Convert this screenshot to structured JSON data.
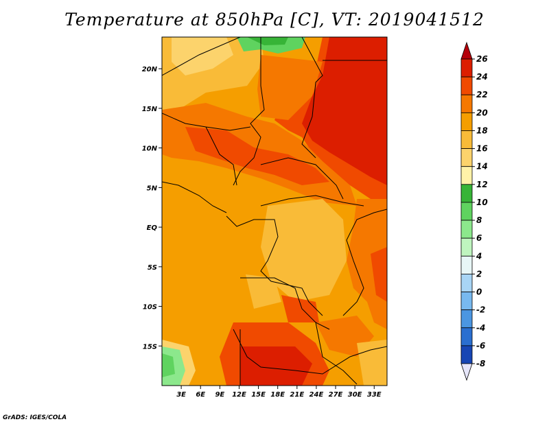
{
  "title": "Temperature at 850hPa [C], VT: 2019041512",
  "credit": "GrADS: IGES/COLA",
  "map": {
    "lon_range": [
      0,
      35
    ],
    "lat_range": [
      -20,
      24
    ],
    "lon_ticks": [
      {
        "value": 3,
        "label": "3E"
      },
      {
        "value": 6,
        "label": "6E"
      },
      {
        "value": 9,
        "label": "9E"
      },
      {
        "value": 12,
        "label": "12E"
      },
      {
        "value": 15,
        "label": "15E"
      },
      {
        "value": 18,
        "label": "18E"
      },
      {
        "value": 21,
        "label": "21E"
      },
      {
        "value": 24,
        "label": "24E"
      },
      {
        "value": 27,
        "label": "27E"
      },
      {
        "value": 30,
        "label": "30E"
      },
      {
        "value": 33,
        "label": "33E"
      }
    ],
    "lat_ticks": [
      {
        "value": 20,
        "label": "20N"
      },
      {
        "value": 15,
        "label": "15N"
      },
      {
        "value": 10,
        "label": "10N"
      },
      {
        "value": 5,
        "label": "5N"
      },
      {
        "value": 0,
        "label": "EQ"
      },
      {
        "value": -5,
        "label": "5S"
      },
      {
        "value": -10,
        "label": "10S"
      },
      {
        "value": -15,
        "label": "15S"
      }
    ]
  },
  "colorbar": {
    "levels": [
      26,
      24,
      22,
      20,
      18,
      16,
      14,
      12,
      10,
      8,
      6,
      4,
      2,
      0,
      -2,
      -4,
      -6,
      -8
    ],
    "colors": [
      "#b4000a",
      "#dc1e00",
      "#f04a00",
      "#f57800",
      "#f59e00",
      "#f9bb38",
      "#fcd36c",
      "#fff2a8",
      "#37b437",
      "#5fd35f",
      "#8ce88c",
      "#bff5bf",
      "#e8f7f7",
      "#a8d5f5",
      "#78b9ef",
      "#4b96e1",
      "#2a6fd0",
      "#1746b4",
      "#0a2896",
      "#0a0a6e",
      "#e6e6fa"
    ]
  }
}
